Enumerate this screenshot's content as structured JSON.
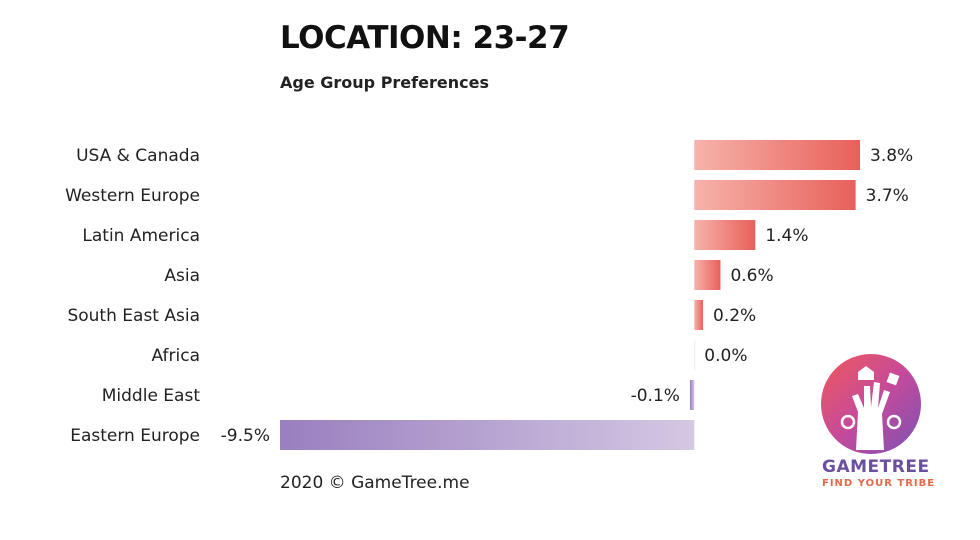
{
  "title": "LOCATION: 23-27",
  "subtitle": "Age Group Preferences",
  "footer": "2020 © GameTree.me",
  "logo": {
    "name": "GAMETREE",
    "tagline": "FIND YOUR TRIBE"
  },
  "chart_data": {
    "type": "bar",
    "orientation": "horizontal",
    "categories": [
      "USA & Canada",
      "Western Europe",
      "Latin America",
      "Asia",
      "South East Asia",
      "Africa",
      "Middle East",
      "Eastern Europe"
    ],
    "values": [
      3.8,
      3.7,
      1.4,
      0.6,
      0.2,
      0.0,
      -0.1,
      -9.5
    ],
    "value_labels": [
      "3.8%",
      "3.7%",
      "1.4%",
      "0.6%",
      "0.2%",
      "0.0%",
      "-0.1%",
      "-9.5%"
    ],
    "xlim": [
      -9.5,
      3.8
    ],
    "colors": {
      "positive": "#e8605a",
      "positive_light": "#f6b3ab",
      "negative": "#9a7fbf",
      "negative_light": "#d4c8e3"
    }
  }
}
